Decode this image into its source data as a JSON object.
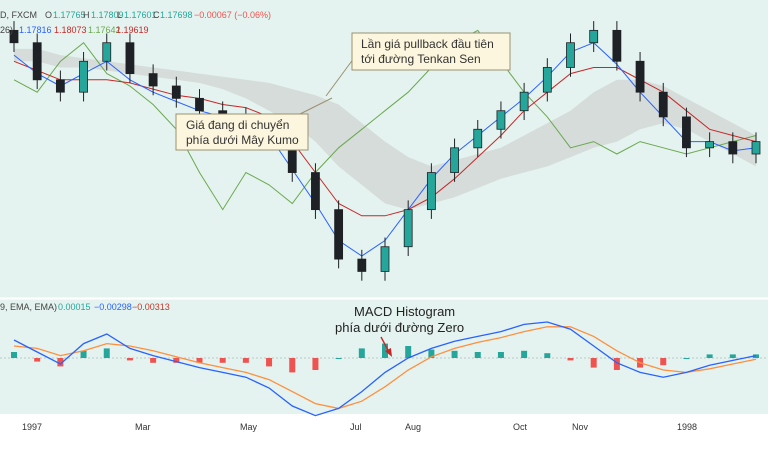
{
  "colors": {
    "background": "#e4f3ef",
    "candle": "#1e2125",
    "tenkan": "#2962ff",
    "kijun": "#c62828",
    "chikou": "#6aa84f",
    "cloud": "#c9c9c9",
    "macd_line": "#2962ff",
    "signal_line": "#ff8f3f",
    "hist_pos": "#26a69a",
    "hist_neg": "#ef5350",
    "callout_bg": "#fbf6dd",
    "callout_border": "#9b9170"
  },
  "price_header": {
    "symbol_tail": "D, FXCM",
    "open_label": "O",
    "open": "1.17765",
    "high_label": "H",
    "high": "1.17809",
    "low_label": "L",
    "low": "1.17601",
    "close_label": "C",
    "close": "1.17698",
    "change": "−0.00067 (−0.06%)"
  },
  "ichimoku_header": {
    "param_tail": "26)",
    "values": [
      "1.17816",
      "1.18073",
      "1.17642",
      "1.19619"
    ]
  },
  "macd_header": {
    "params": "9, EMA, EMA)",
    "values": [
      "0.00015",
      "−0.00298",
      "−0.00313"
    ]
  },
  "callouts": {
    "pullback": [
      "Lần giá pullback đầu tiên",
      "tới đường Tenkan Sen"
    ],
    "below_cloud": [
      "Giá đang di chuyển",
      "phía dưới Mây Kumo"
    ],
    "macd": [
      "MACD Histogram",
      "phía dưới đường Zero"
    ]
  },
  "chart_data": {
    "type": "candlestick",
    "title": "",
    "x_ticks": [
      "1997",
      "Mar",
      "May",
      "Jul",
      "Aug",
      "Oct",
      "Nov",
      "1998"
    ],
    "price_series": {
      "close": [
        1.192,
        1.18,
        1.176,
        1.186,
        1.192,
        1.182,
        1.178,
        1.174,
        1.17,
        1.168,
        1.166,
        1.163,
        1.15,
        1.138,
        1.122,
        1.118,
        1.126,
        1.138,
        1.15,
        1.158,
        1.164,
        1.17,
        1.176,
        1.184,
        1.192,
        1.196,
        1.186,
        1.176,
        1.168,
        1.158,
        1.16,
        1.156,
        1.16
      ],
      "tenkan": [
        1.188,
        1.182,
        1.178,
        1.182,
        1.186,
        1.18,
        1.176,
        1.173,
        1.17,
        1.168,
        1.166,
        1.162,
        1.151,
        1.14,
        1.128,
        1.123,
        1.128,
        1.138,
        1.148,
        1.156,
        1.162,
        1.168,
        1.174,
        1.181,
        1.189,
        1.192,
        1.185,
        1.176,
        1.168,
        1.16,
        1.16,
        1.157,
        1.158
      ],
      "kijun": [
        1.186,
        1.183,
        1.18,
        1.18,
        1.18,
        1.179,
        1.177,
        1.175,
        1.174,
        1.172,
        1.171,
        1.168,
        1.16,
        1.15,
        1.14,
        1.136,
        1.136,
        1.138,
        1.142,
        1.148,
        1.155,
        1.162,
        1.17,
        1.176,
        1.182,
        1.184,
        1.184,
        1.18,
        1.176,
        1.17,
        1.164,
        1.162,
        1.16
      ],
      "cloud_top": [
        1.19,
        1.19,
        1.188,
        1.187,
        1.186,
        1.185,
        1.184,
        1.183,
        1.182,
        1.181,
        1.18,
        1.179,
        1.177,
        1.175,
        1.172,
        1.166,
        1.16,
        1.155,
        1.152,
        1.154,
        1.156,
        1.158,
        1.162,
        1.166,
        1.17,
        1.176,
        1.18,
        1.18,
        1.178,
        1.174,
        1.17,
        1.166,
        1.162
      ],
      "cloud_bottom": [
        1.186,
        1.186,
        1.184,
        1.184,
        1.183,
        1.182,
        1.181,
        1.18,
        1.179,
        1.177,
        1.174,
        1.17,
        1.166,
        1.16,
        1.152,
        1.146,
        1.14,
        1.138,
        1.14,
        1.142,
        1.145,
        1.148,
        1.15,
        1.152,
        1.155,
        1.158,
        1.16,
        1.164,
        1.166,
        1.164,
        1.16,
        1.156,
        1.152
      ],
      "chikou": [
        1.18,
        1.176,
        1.186,
        1.192,
        1.182,
        1.178,
        1.172,
        1.164,
        1.15,
        1.138,
        1.15,
        1.146,
        1.14,
        1.15,
        1.158,
        1.164,
        1.17,
        1.176,
        1.184,
        1.192,
        1.196,
        1.186,
        1.176,
        1.168,
        1.158,
        1.16,
        1.156,
        1.16,
        1.158,
        1.156,
        1.158,
        1.16,
        1.162
      ]
    },
    "macd": {
      "macd": [
        0.0015,
        0.0005,
        -0.0005,
        0.0012,
        0.002,
        0.0008,
        0.0002,
        -0.0003,
        -0.0008,
        -0.0012,
        -0.0016,
        -0.0025,
        -0.004,
        -0.0048,
        -0.0042,
        -0.0028,
        -0.0012,
        0.0,
        0.0008,
        0.0014,
        0.0018,
        0.0022,
        0.0028,
        0.003,
        0.0024,
        0.001,
        -0.0004,
        -0.0012,
        -0.0016,
        -0.0012,
        -0.0006,
        -0.0002,
        0.0002
      ],
      "signal": [
        0.001,
        0.0008,
        0.0002,
        0.0006,
        0.0012,
        0.001,
        0.0006,
        0.0001,
        -0.0004,
        -0.0008,
        -0.0012,
        -0.0018,
        -0.0028,
        -0.0038,
        -0.0042,
        -0.0036,
        -0.0024,
        -0.001,
        0.0001,
        0.0008,
        0.0013,
        0.0017,
        0.0022,
        0.0026,
        0.0026,
        0.0018,
        0.0006,
        -0.0004,
        -0.001,
        -0.0012,
        -0.0009,
        -0.0005,
        -0.0001
      ],
      "histogram": [
        0.0005,
        -0.0003,
        -0.0007,
        0.0006,
        0.0008,
        -0.0002,
        -0.0004,
        -0.0004,
        -0.0004,
        -0.0004,
        -0.0004,
        -0.0007,
        -0.0012,
        -0.001,
        0.0,
        0.0008,
        0.0012,
        0.001,
        0.0007,
        0.0006,
        0.0005,
        0.0005,
        0.0006,
        0.0004,
        -0.0002,
        -0.0008,
        -0.001,
        -0.0008,
        -0.0006,
        0.0,
        0.0003,
        0.0003,
        0.0003
      ]
    }
  }
}
